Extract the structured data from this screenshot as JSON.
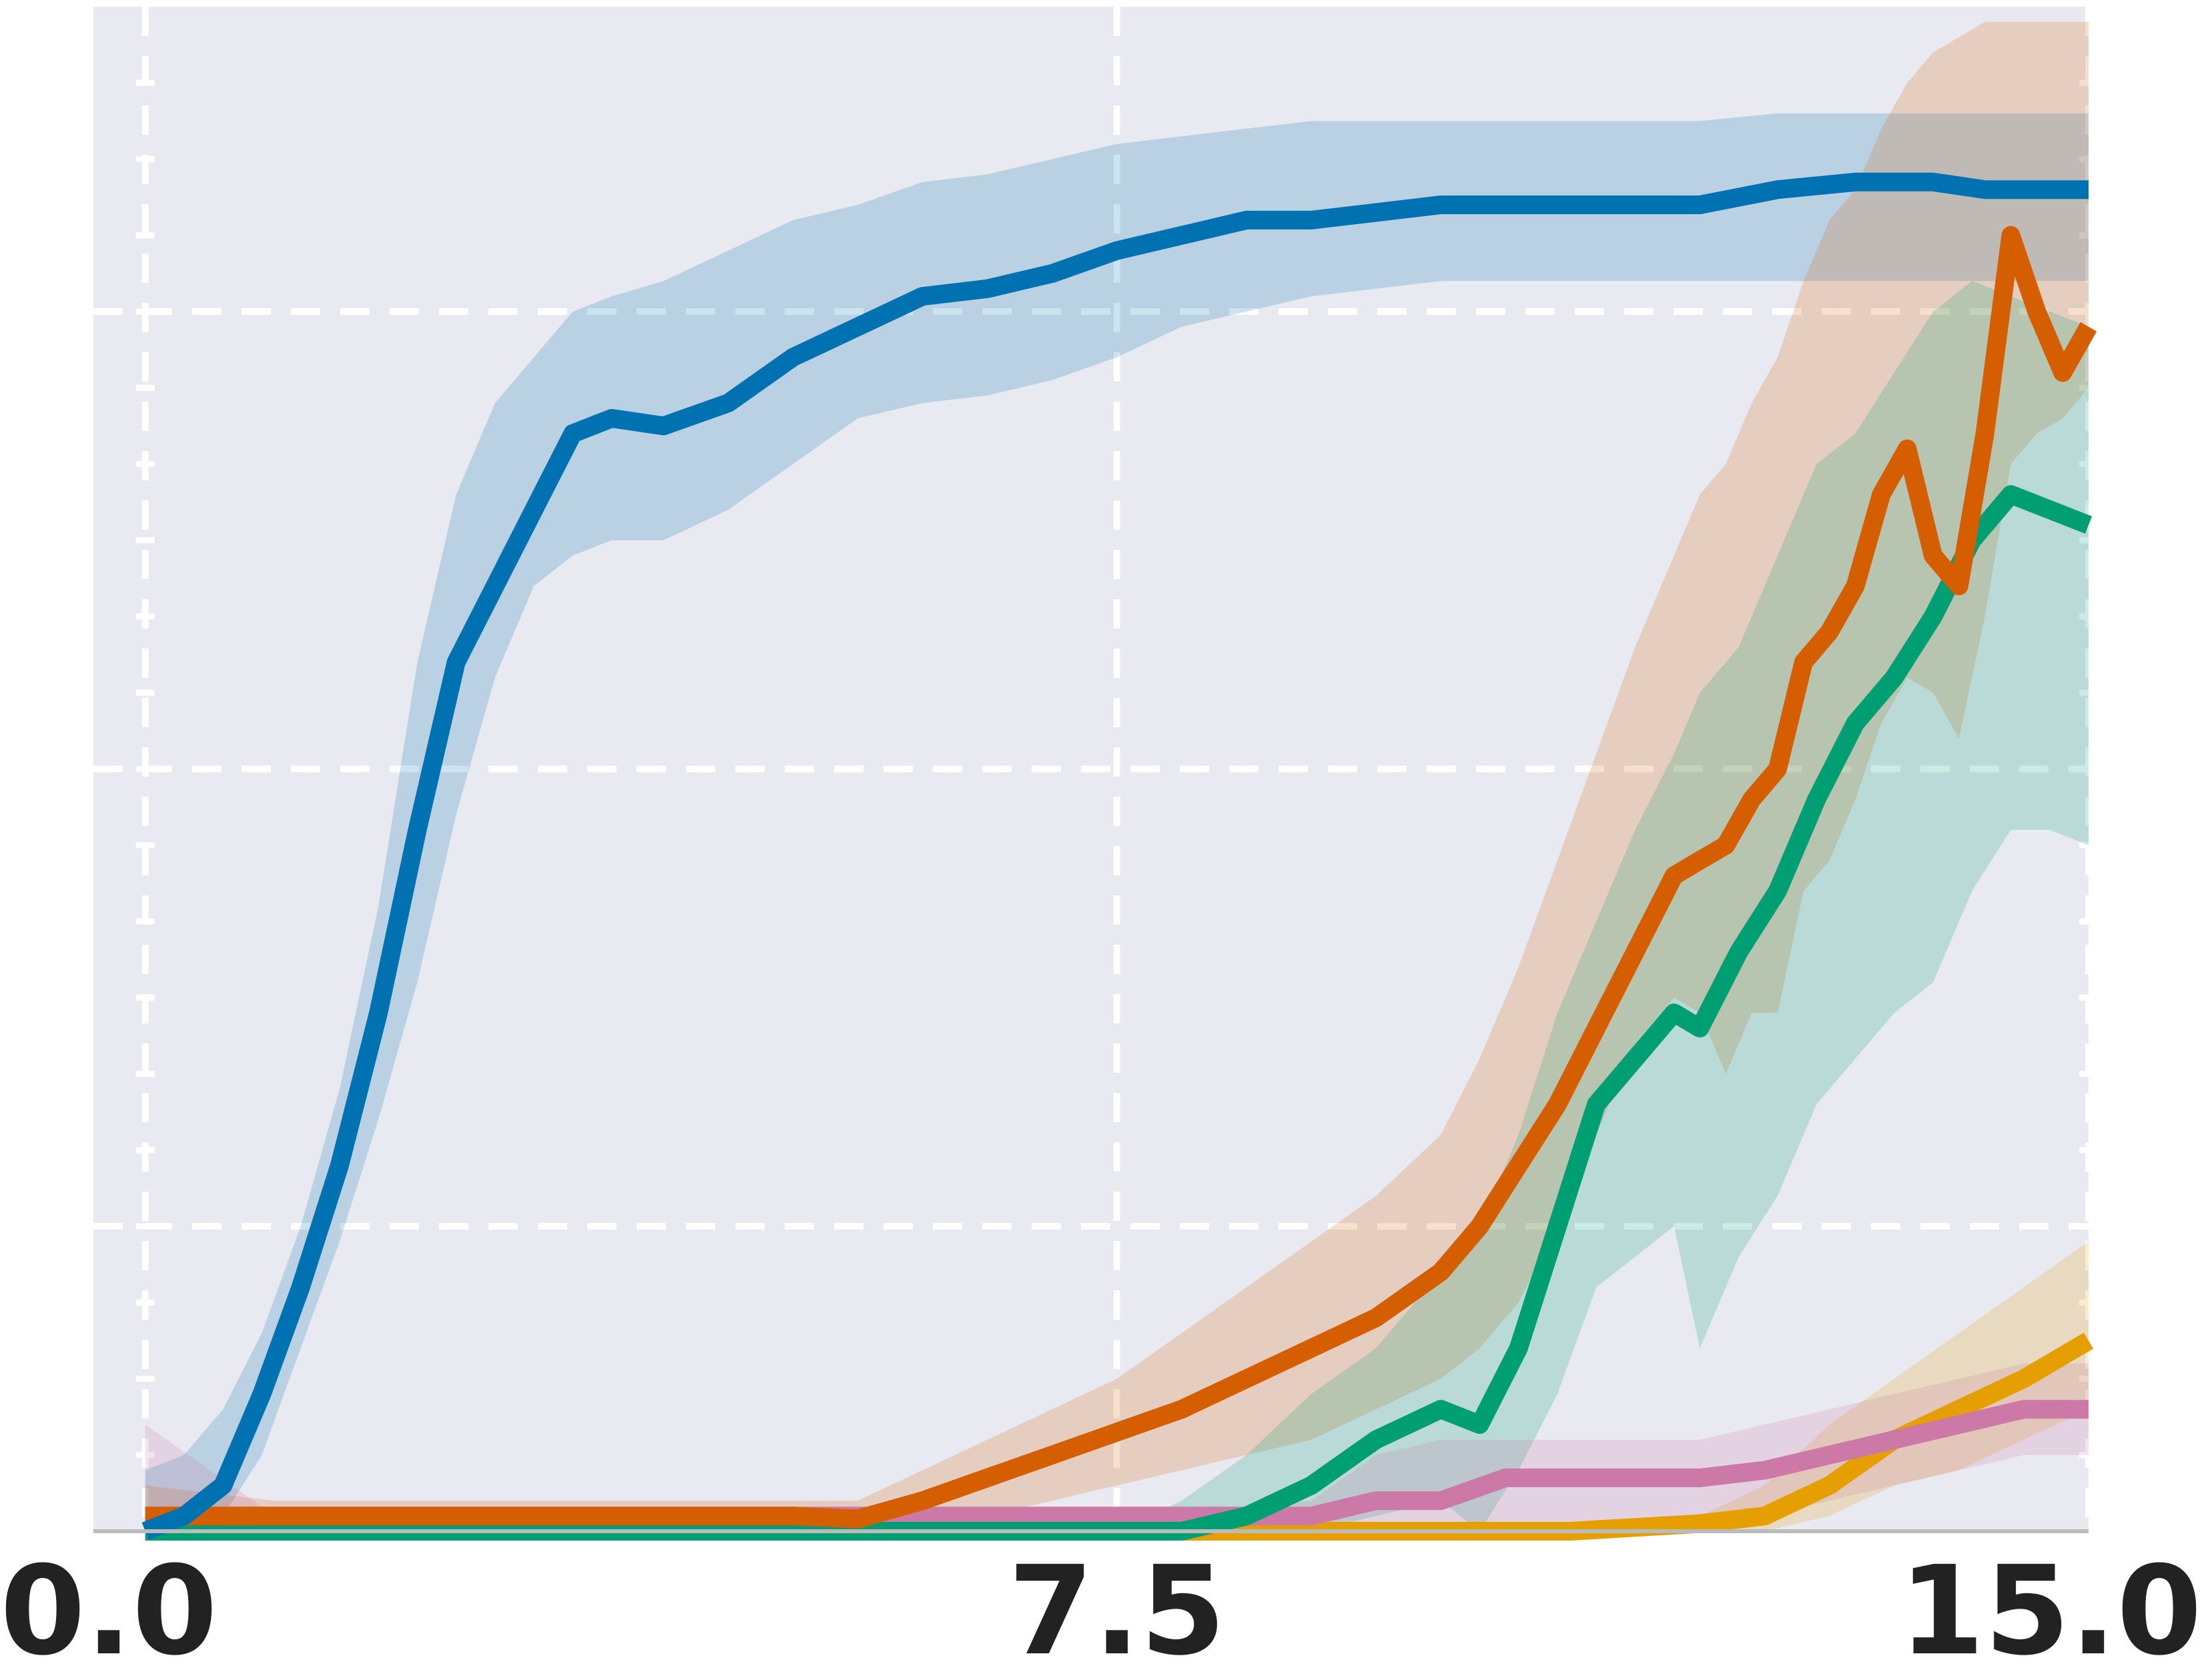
{
  "chart_data": {
    "type": "line",
    "title": "",
    "xlabel": "",
    "ylabel": "",
    "xlim": [
      -0.4,
      15.0
    ],
    "ylim": [
      0.0,
      1.0
    ],
    "x_ticks": [
      0.0,
      7.5,
      15.0
    ],
    "x_tick_labels": [
      "0.0",
      "7.5",
      "15.0"
    ],
    "y_gridlines": [
      0.2,
      0.5,
      0.8
    ],
    "x_minor_ticks": [
      0.0,
      15.0
    ],
    "grid": true,
    "legend": "none",
    "colors": {
      "background": "#e9e9f1",
      "grid": "#ffffff",
      "axis": "#bbbbbb"
    },
    "series": [
      {
        "color": "#0072b2",
        "x": [
          0.0,
          0.3,
          0.6,
          0.9,
          1.2,
          1.5,
          1.8,
          2.1,
          2.4,
          2.7,
          3.0,
          3.3,
          3.6,
          4.0,
          4.5,
          5.0,
          5.5,
          6.0,
          6.5,
          7.0,
          7.5,
          8.0,
          8.5,
          9.0,
          9.5,
          10.0,
          11.0,
          12.0,
          12.6,
          13.2,
          13.8,
          14.2,
          14.6,
          15.0
        ],
        "y": [
          0.0,
          0.01,
          0.03,
          0.09,
          0.16,
          0.24,
          0.34,
          0.46,
          0.57,
          0.62,
          0.67,
          0.72,
          0.73,
          0.725,
          0.74,
          0.77,
          0.79,
          0.81,
          0.815,
          0.825,
          0.84,
          0.85,
          0.86,
          0.86,
          0.865,
          0.87,
          0.87,
          0.87,
          0.88,
          0.885,
          0.885,
          0.88,
          0.88,
          0.88
        ],
        "lower": [
          0.0,
          0.0,
          0.01,
          0.05,
          0.12,
          0.19,
          0.27,
          0.36,
          0.47,
          0.56,
          0.62,
          0.64,
          0.65,
          0.65,
          0.67,
          0.7,
          0.73,
          0.74,
          0.745,
          0.755,
          0.77,
          0.79,
          0.8,
          0.81,
          0.815,
          0.82,
          0.82,
          0.82,
          0.82,
          0.82,
          0.82,
          0.82,
          0.82,
          0.82
        ],
        "upper": [
          0.04,
          0.05,
          0.08,
          0.13,
          0.2,
          0.29,
          0.41,
          0.57,
          0.68,
          0.74,
          0.77,
          0.8,
          0.81,
          0.82,
          0.84,
          0.86,
          0.87,
          0.885,
          0.89,
          0.9,
          0.91,
          0.915,
          0.92,
          0.925,
          0.925,
          0.925,
          0.925,
          0.925,
          0.93,
          0.93,
          0.93,
          0.93,
          0.93,
          0.93
        ]
      },
      {
        "color": "#d55e00",
        "x": [
          0.0,
          1.0,
          2.0,
          3.0,
          4.0,
          5.0,
          5.5,
          6.0,
          6.5,
          7.0,
          7.5,
          8.0,
          8.5,
          9.0,
          9.5,
          10.0,
          10.3,
          10.6,
          10.9,
          11.2,
          11.5,
          11.8,
          12.0,
          12.2,
          12.4,
          12.6,
          12.8,
          13.0,
          13.2,
          13.4,
          13.6,
          13.8,
          14.0,
          14.2,
          14.4,
          14.6,
          14.8,
          15.0
        ],
        "y": [
          0.01,
          0.01,
          0.01,
          0.01,
          0.01,
          0.01,
          0.008,
          0.02,
          0.035,
          0.05,
          0.065,
          0.08,
          0.1,
          0.12,
          0.14,
          0.17,
          0.2,
          0.24,
          0.28,
          0.33,
          0.38,
          0.43,
          0.44,
          0.45,
          0.48,
          0.5,
          0.57,
          0.59,
          0.62,
          0.68,
          0.71,
          0.64,
          0.62,
          0.72,
          0.85,
          0.8,
          0.76,
          0.79
        ],
        "lower": [
          0.0,
          0.0,
          0.0,
          0.0,
          0.0,
          0.0,
          0.0,
          0.005,
          0.01,
          0.02,
          0.03,
          0.04,
          0.05,
          0.06,
          0.08,
          0.1,
          0.12,
          0.15,
          0.2,
          0.26,
          0.32,
          0.35,
          0.34,
          0.3,
          0.34,
          0.34,
          0.42,
          0.44,
          0.48,
          0.53,
          0.56,
          0.55,
          0.52,
          0.6,
          0.7,
          0.72,
          0.73,
          0.75
        ],
        "upper": [
          0.03,
          0.02,
          0.02,
          0.02,
          0.02,
          0.02,
          0.02,
          0.04,
          0.06,
          0.08,
          0.1,
          0.13,
          0.16,
          0.19,
          0.22,
          0.26,
          0.31,
          0.37,
          0.44,
          0.51,
          0.58,
          0.64,
          0.68,
          0.7,
          0.74,
          0.77,
          0.82,
          0.86,
          0.88,
          0.92,
          0.95,
          0.97,
          0.98,
          0.99,
          0.99,
          0.99,
          0.99,
          0.99
        ]
      },
      {
        "color": "#009e73",
        "x": [
          0.0,
          1.0,
          2.0,
          3.0,
          4.0,
          5.0,
          6.0,
          6.5,
          7.0,
          7.5,
          8.0,
          8.5,
          9.0,
          9.5,
          10.0,
          10.3,
          10.6,
          10.9,
          11.2,
          11.5,
          11.8,
          12.0,
          12.3,
          12.6,
          12.9,
          13.2,
          13.5,
          13.8,
          14.1,
          14.4,
          14.7,
          15.0
        ],
        "y": [
          0.0,
          0.0,
          0.0,
          0.0,
          0.0,
          0.0,
          0.0,
          0.0,
          0.0,
          0.0,
          0.0,
          0.01,
          0.03,
          0.06,
          0.08,
          0.07,
          0.12,
          0.2,
          0.28,
          0.31,
          0.34,
          0.33,
          0.38,
          0.42,
          0.48,
          0.53,
          0.56,
          0.6,
          0.65,
          0.68,
          0.67,
          0.66
        ],
        "lower": [
          0.0,
          0.0,
          0.0,
          0.0,
          0.0,
          0.0,
          0.0,
          0.0,
          0.0,
          0.0,
          0.0,
          0.0,
          0.0,
          0.01,
          0.02,
          0.0,
          0.04,
          0.09,
          0.16,
          0.18,
          0.2,
          0.12,
          0.18,
          0.22,
          0.28,
          0.31,
          0.34,
          0.36,
          0.42,
          0.46,
          0.46,
          0.45
        ],
        "upper": [
          0.0,
          0.0,
          0.0,
          0.0,
          0.0,
          0.0,
          0.0,
          0.0,
          0.0,
          0.0,
          0.02,
          0.05,
          0.09,
          0.12,
          0.17,
          0.2,
          0.26,
          0.34,
          0.4,
          0.46,
          0.51,
          0.55,
          0.58,
          0.64,
          0.7,
          0.72,
          0.76,
          0.8,
          0.82,
          0.81,
          0.8,
          0.79
        ]
      },
      {
        "color": "#e69f00",
        "x": [
          0.0,
          2.0,
          4.0,
          6.0,
          8.0,
          10.0,
          11.0,
          12.0,
          12.5,
          13.0,
          13.5,
          14.0,
          14.5,
          15.0
        ],
        "y": [
          0.0,
          0.0,
          0.0,
          0.0,
          0.0,
          0.0,
          0.0,
          0.005,
          0.01,
          0.03,
          0.06,
          0.08,
          0.1,
          0.125
        ],
        "lower": [
          0.0,
          0.0,
          0.0,
          0.0,
          0.0,
          0.0,
          0.0,
          0.0,
          0.0,
          0.01,
          0.03,
          0.04,
          0.06,
          0.08
        ],
        "upper": [
          0.0,
          0.0,
          0.0,
          0.0,
          0.0,
          0.0,
          0.0,
          0.01,
          0.03,
          0.07,
          0.1,
          0.13,
          0.16,
          0.19
        ]
      },
      {
        "color": "#cc79a7",
        "x": [
          0.0,
          1.0,
          2.0,
          4.0,
          6.0,
          8.0,
          9.0,
          9.5,
          10.0,
          10.5,
          11.0,
          11.5,
          12.0,
          12.5,
          13.0,
          13.5,
          14.0,
          14.5,
          15.0
        ],
        "y": [
          0.01,
          0.01,
          0.01,
          0.01,
          0.01,
          0.01,
          0.01,
          0.02,
          0.02,
          0.035,
          0.035,
          0.035,
          0.035,
          0.04,
          0.05,
          0.06,
          0.07,
          0.08,
          0.08
        ],
        "lower": [
          0.0,
          0.0,
          0.0,
          0.0,
          0.0,
          0.0,
          0.0,
          0.0,
          0.0,
          0.0,
          0.0,
          0.0,
          0.0,
          0.01,
          0.02,
          0.03,
          0.04,
          0.05,
          0.05
        ],
        "upper": [
          0.07,
          0.01,
          0.01,
          0.01,
          0.01,
          0.01,
          0.02,
          0.05,
          0.06,
          0.06,
          0.06,
          0.06,
          0.06,
          0.07,
          0.08,
          0.09,
          0.1,
          0.11,
          0.11
        ]
      }
    ]
  }
}
